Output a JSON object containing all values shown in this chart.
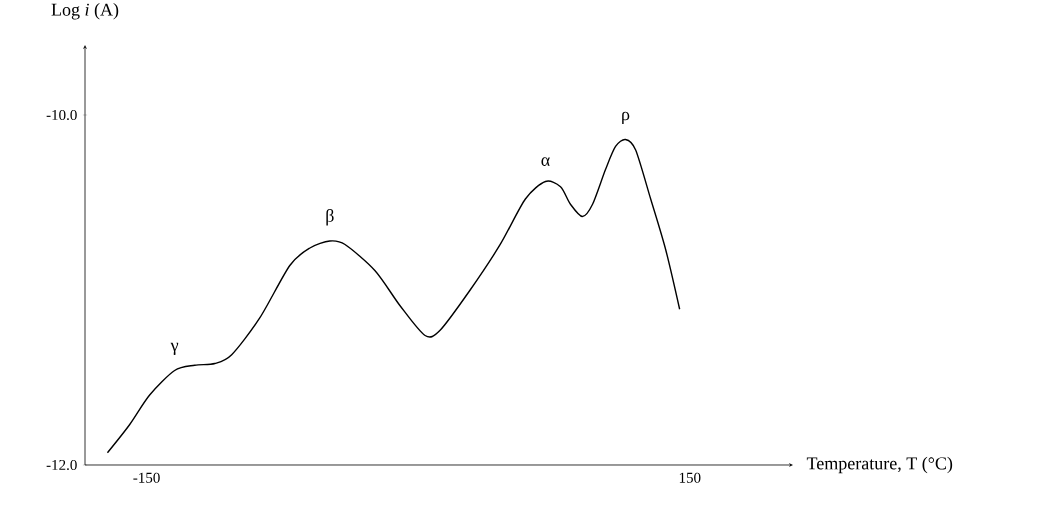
{
  "chart_data": {
    "type": "line",
    "xlabel": "Temperature, T (°C)",
    "ylabel": "Log *i* (A)",
    "x": [
      -171.6,
      -159.4,
      -148.3,
      -134.5,
      -123.4,
      -112.3,
      -103.0,
      -87.5,
      -70.9,
      -59.8,
      -48.8,
      -40.4,
      -23.8,
      -10.0,
      3.8,
      12.1,
      28.7,
      45.3,
      59.2,
      70.3,
      78.6,
      84.1,
      90.7,
      96.3,
      103.5,
      109.0,
      114.5,
      120.1,
      128.4,
      136.7,
      144.4
    ],
    "values": [
      -11.93,
      -11.77,
      -11.6,
      -11.46,
      -11.43,
      -11.42,
      -11.37,
      -11.16,
      -10.86,
      -10.76,
      -10.72,
      -10.74,
      -10.89,
      -11.09,
      -11.26,
      -11.23,
      -11.0,
      -10.74,
      -10.48,
      -10.38,
      -10.41,
      -10.51,
      -10.58,
      -10.51,
      -10.31,
      -10.18,
      -10.14,
      -10.2,
      -10.48,
      -10.77,
      -11.11
    ],
    "color": "#000000",
    "xlim": [
      -184,
      207
    ],
    "ylim": [
      -12,
      -9.6
    ],
    "xticks": [
      -150,
      150
    ],
    "yticks": [
      {
        "value": -12,
        "label": "-12.0"
      },
      {
        "value": -10,
        "label": "-10.0"
      }
    ],
    "annotations": [
      {
        "text": "γ",
        "x": -134.5,
        "y": -11.46
      },
      {
        "text": "β",
        "x": -48.8,
        "y": -10.72
      },
      {
        "text": "α",
        "x": 70.3,
        "y": -10.38
      },
      {
        "text": "ρ",
        "x": 114.5,
        "y": -10.14
      }
    ]
  }
}
